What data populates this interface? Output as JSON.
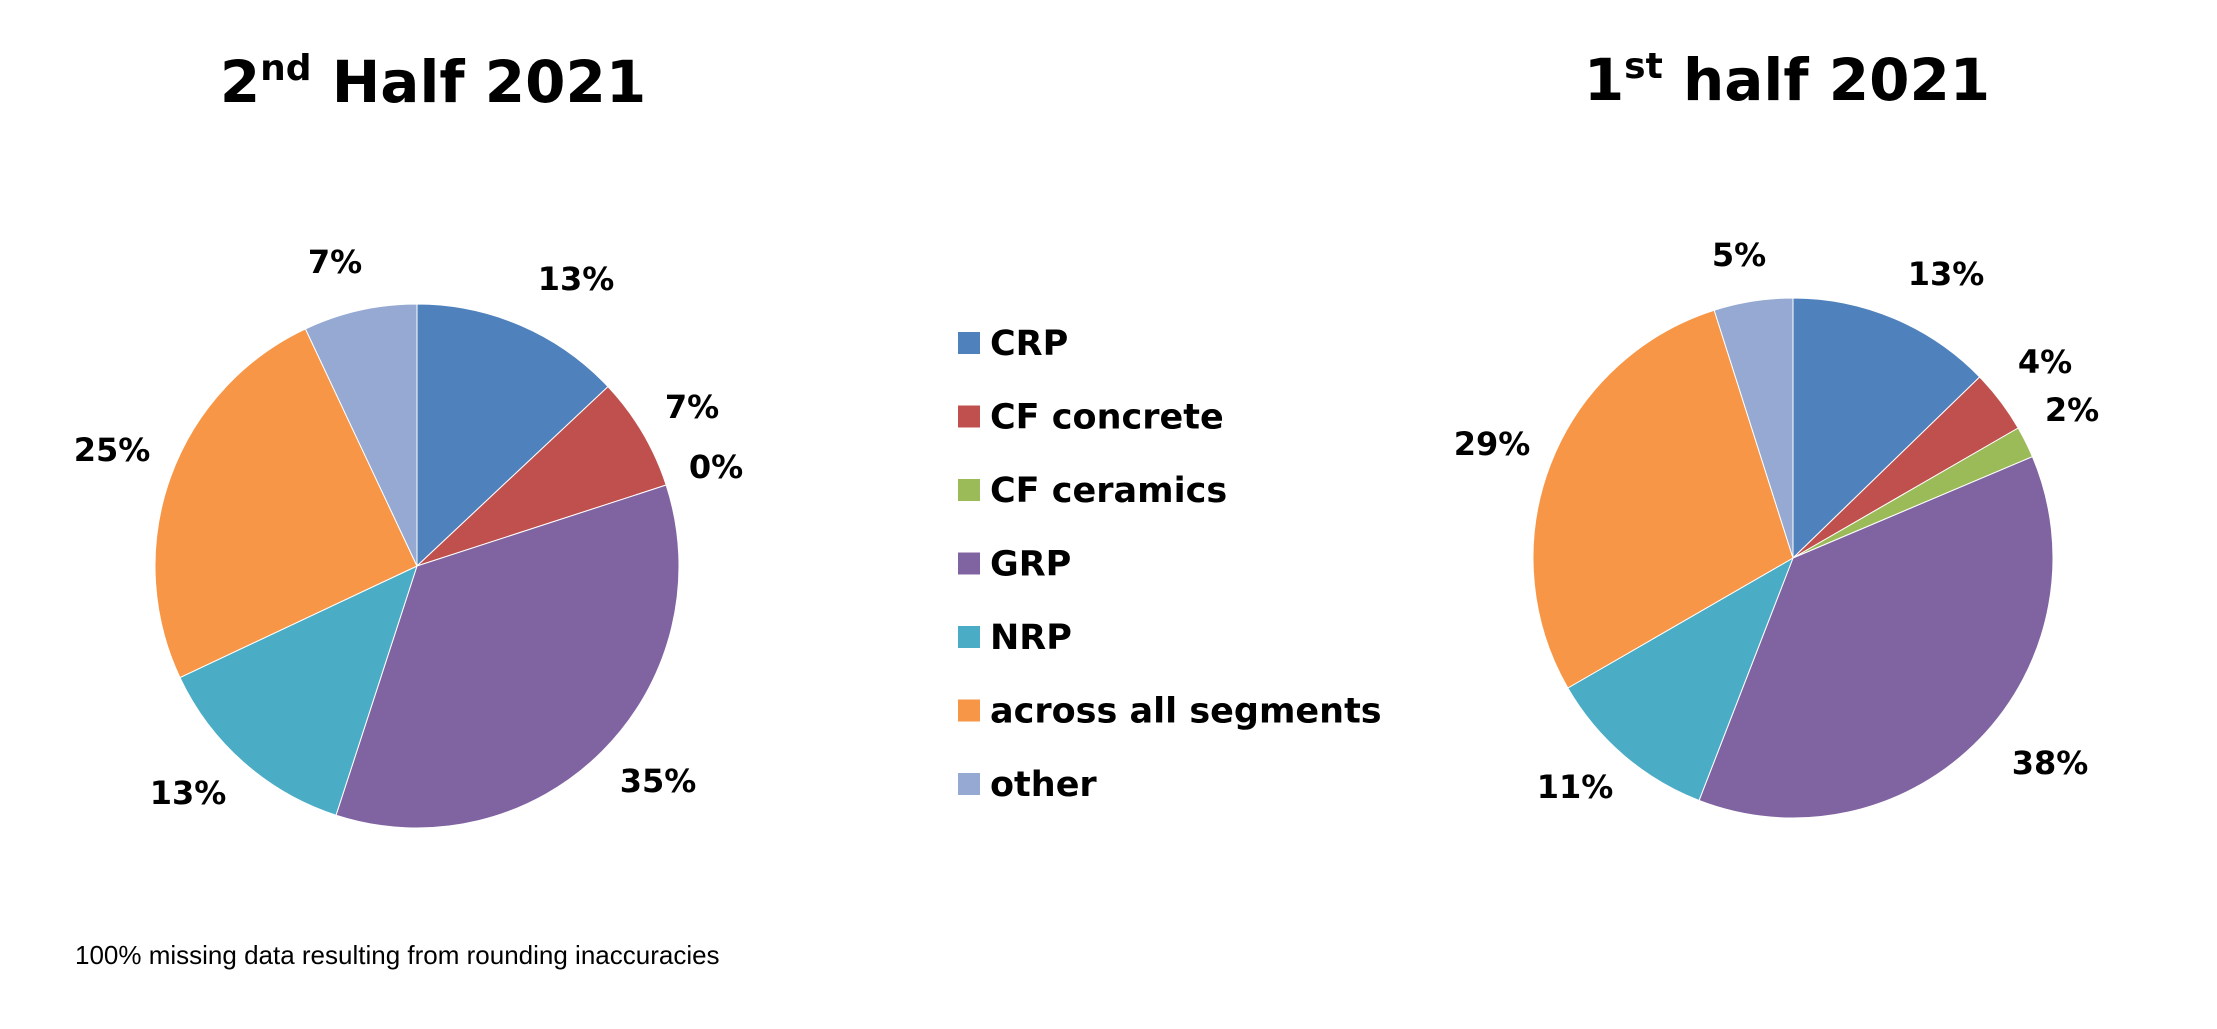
{
  "chart_data": [
    {
      "type": "pie",
      "title_base": "2",
      "title_sup": "nd",
      "title_rest": " Half 2021",
      "categories": [
        "CRP",
        "CF concrete",
        "CF ceramics",
        "GRP",
        "NRP",
        "across all segments",
        "other"
      ],
      "values": [
        13,
        7,
        0,
        35,
        13,
        25,
        7
      ],
      "labels": [
        "13%",
        "7%",
        "0%",
        "35%",
        "13%",
        "25%",
        "7%"
      ]
    },
    {
      "type": "pie",
      "title_base": "1",
      "title_sup": "st",
      "title_rest": " half 2021",
      "categories": [
        "CRP",
        "CF concrete",
        "CF ceramics",
        "GRP",
        "NRP",
        "across all segments",
        "other"
      ],
      "values": [
        13,
        4,
        2,
        38,
        11,
        29,
        5
      ],
      "labels": [
        "13%",
        "4%",
        "2%",
        "38%",
        "11%",
        "29%",
        "5%"
      ]
    }
  ],
  "legend": [
    {
      "label": "CRP",
      "color": "#4F81BD"
    },
    {
      "label": "CF concrete",
      "color": "#C0504D"
    },
    {
      "label": "CF ceramics",
      "color": "#9BBB59"
    },
    {
      "label": "GRP",
      "color": "#8064A2"
    },
    {
      "label": "NRP",
      "color": "#4BACC6"
    },
    {
      "label": "across all segments",
      "color": "#F79646"
    },
    {
      "label": "other",
      "color": "#95A9D2"
    }
  ],
  "footnote": "100% missing data resulting from rounding inaccuracies"
}
